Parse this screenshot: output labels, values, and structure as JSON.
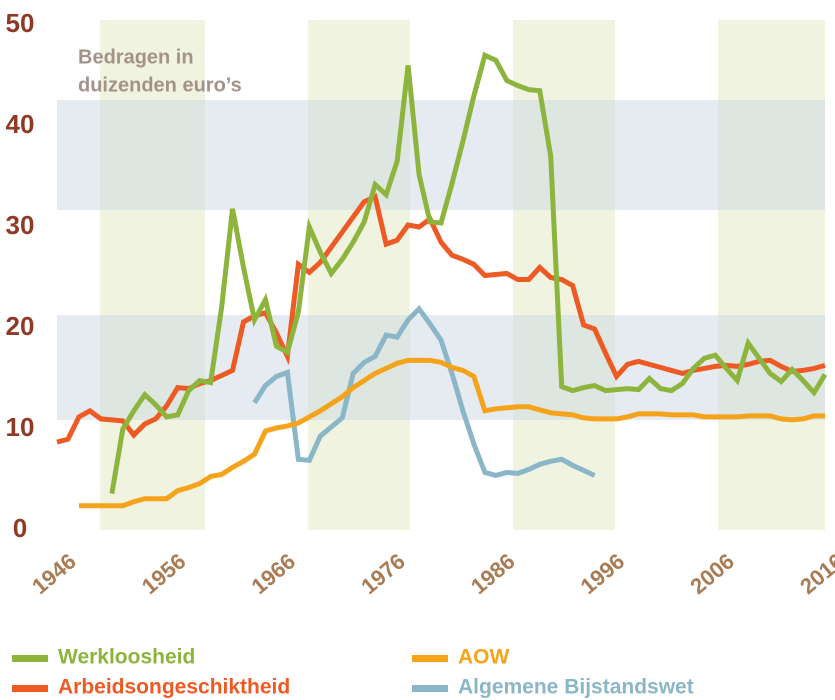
{
  "chart_data": {
    "type": "line",
    "annotation": [
      "Bedragen in",
      "duizenden euro’s"
    ],
    "x": [
      1946,
      1947,
      1948,
      1949,
      1950,
      1951,
      1952,
      1953,
      1954,
      1955,
      1956,
      1957,
      1958,
      1959,
      1960,
      1961,
      1962,
      1963,
      1964,
      1965,
      1966,
      1967,
      1968,
      1969,
      1970,
      1971,
      1972,
      1973,
      1974,
      1975,
      1976,
      1977,
      1978,
      1979,
      1980,
      1981,
      1982,
      1983,
      1984,
      1985,
      1986,
      1987,
      1988,
      1989,
      1990,
      1991,
      1992,
      1993,
      1994,
      1995,
      1996,
      1997,
      1998,
      1999,
      2000,
      2001,
      2002,
      2003,
      2004,
      2005,
      2006,
      2007,
      2008,
      2009,
      2010,
      2011,
      2012,
      2013,
      2014,
      2015,
      2016
    ],
    "series": [
      {
        "name": "Werkloosheid",
        "color": "#8db43c",
        "values": [
          null,
          null,
          null,
          null,
          null,
          3.6,
          10,
          11.8,
          13.4,
          12.4,
          11.2,
          11.4,
          13.8,
          14.8,
          14.6,
          22,
          31.8,
          26,
          20.8,
          22.8,
          18.2,
          17.6,
          21.6,
          30,
          27.5,
          25.4,
          26.8,
          28.5,
          30.5,
          34.2,
          33.2,
          36.5,
          46,
          35.2,
          30.5,
          30.4,
          34.3,
          38.5,
          43,
          47,
          46.5,
          44.5,
          44,
          43.6,
          43.5,
          37,
          14.2,
          13.8,
          14.1,
          14.3,
          13.8,
          13.9,
          14,
          13.9,
          15,
          14,
          13.8,
          14.5,
          16,
          17,
          17.3,
          16,
          14.8,
          18.5,
          17,
          15.5,
          14.7,
          15.9,
          14.8,
          13.6,
          15.4
        ]
      },
      {
        "name": "Arbeidsongeschiktheid",
        "color": "#ee5a24",
        "values": [
          8.7,
          9,
          11.2,
          11.8,
          11,
          10.9,
          10.8,
          9.4,
          10.5,
          11,
          12.3,
          14.1,
          14,
          14.5,
          14.8,
          15.3,
          15.8,
          20.6,
          21.2,
          21.5,
          19.5,
          17.2,
          26.3,
          25.5,
          26.5,
          28,
          29.5,
          31,
          32.5,
          33,
          28.3,
          28.7,
          30.2,
          30,
          30.8,
          28.5,
          27.2,
          26.8,
          26.3,
          25.2,
          25.3,
          25.4,
          24.8,
          24.8,
          26,
          25,
          24.8,
          24.2,
          20.3,
          19.9,
          17.5,
          15.2,
          16.4,
          16.7,
          16.4,
          16.1,
          15.8,
          15.5,
          15.8,
          16,
          16.2,
          16.3,
          16.2,
          16.4,
          16.7,
          16.8,
          16.2,
          15.7,
          15.8,
          16,
          16.3
        ]
      },
      {
        "name": "AOW",
        "color": "#f5a31a",
        "values": [
          null,
          null,
          2.4,
          2.4,
          2.4,
          2.4,
          2.4,
          2.8,
          3.1,
          3.1,
          3.1,
          3.9,
          4.2,
          4.6,
          5.3,
          5.5,
          6.2,
          6.8,
          7.5,
          9.8,
          10.1,
          10.3,
          10.6,
          11.2,
          11.8,
          12.5,
          13.2,
          14.1,
          14.8,
          15.5,
          16,
          16.5,
          16.8,
          16.8,
          16.8,
          16.6,
          16.1,
          15.8,
          15.2,
          11.8,
          12,
          12.1,
          12.2,
          12.2,
          11.9,
          11.6,
          11.5,
          11.4,
          11.1,
          11,
          11,
          11,
          11.2,
          11.5,
          11.5,
          11.5,
          11.4,
          11.4,
          11.4,
          11.2,
          11.2,
          11.2,
          11.2,
          11.3,
          11.3,
          11.3,
          11,
          10.9,
          11,
          11.3,
          11.3
        ]
      },
      {
        "name": "Algemene Bijstandswet",
        "color": "#8ab6c8",
        "values": [
          null,
          null,
          null,
          null,
          null,
          null,
          null,
          null,
          null,
          null,
          null,
          null,
          null,
          null,
          null,
          null,
          null,
          null,
          12.6,
          14.3,
          15.2,
          15.6,
          7,
          6.9,
          9.3,
          10.2,
          11.1,
          15.5,
          16.6,
          17.2,
          19.3,
          19.1,
          20.8,
          21.9,
          20.4,
          18.8,
          15.5,
          11.8,
          8.5,
          5.7,
          5.4,
          5.7,
          5.6,
          6,
          6.5,
          6.8,
          7,
          6.4,
          5.9,
          5.4,
          null,
          null,
          null,
          null,
          null,
          null,
          null,
          null,
          null,
          null,
          null,
          null,
          null,
          null,
          null,
          null,
          null,
          null,
          null,
          null,
          null
        ]
      }
    ],
    "xlim": [
      1946,
      2016
    ],
    "xticks": [
      1946,
      1956,
      1966,
      1976,
      1986,
      1996,
      2006,
      2016
    ],
    "ylim": [
      0,
      50
    ],
    "yticks": [
      0,
      10,
      20,
      30,
      40,
      50
    ],
    "grid": false
  }
}
